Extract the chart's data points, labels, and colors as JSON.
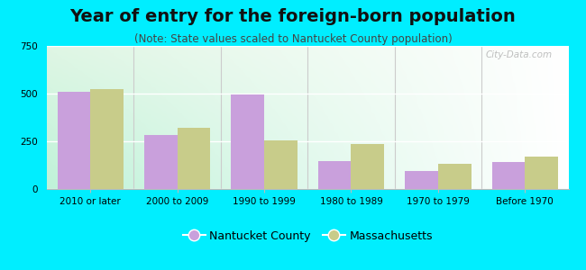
{
  "title": "Year of entry for the foreign-born population",
  "subtitle": "(Note: State values scaled to Nantucket County population)",
  "categories": [
    "2010 or later",
    "2000 to 2009",
    "1990 to 1999",
    "1980 to 1989",
    "1970 to 1979",
    "Before 1970"
  ],
  "nantucket_values": [
    510,
    285,
    495,
    145,
    95,
    140
  ],
  "massachusetts_values": [
    525,
    320,
    255,
    235,
    130,
    170
  ],
  "nantucket_color": "#c9a0dc",
  "massachusetts_color": "#c8cc8a",
  "bar_width": 0.38,
  "ylim": [
    0,
    750
  ],
  "yticks": [
    0,
    250,
    500,
    750
  ],
  "bg_color": "#00eeff",
  "plot_bg_left": "#aaeedd",
  "plot_bg_right": "#f5fff5",
  "watermark": "City-Data.com",
  "legend_nantucket": "Nantucket County",
  "legend_massachusetts": "Massachusetts",
  "title_fontsize": 14,
  "subtitle_fontsize": 8.5,
  "tick_fontsize": 7.5,
  "legend_fontsize": 9
}
